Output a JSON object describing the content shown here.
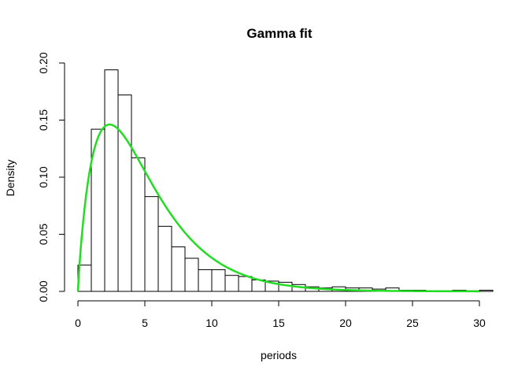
{
  "chart_data": {
    "type": "bar",
    "subtype": "histogram-with-density-curve",
    "title": "Gamma fit",
    "xlabel": "periods",
    "ylabel": "Density",
    "xlim": [
      0,
      31
    ],
    "ylim": [
      0,
      0.2
    ],
    "x_ticks": [
      0,
      5,
      10,
      15,
      20,
      25,
      30
    ],
    "y_ticks": [
      0,
      0.05,
      0.1,
      0.15,
      0.2
    ],
    "x_tick_labels": [
      "0",
      "5",
      "10",
      "15",
      "20",
      "25",
      "30"
    ],
    "y_tick_labels": [
      "0.00",
      "0.05",
      "0.10",
      "0.15",
      "0.20"
    ],
    "bin_width": 1,
    "bins": [
      {
        "x0": 0,
        "x1": 1,
        "density": 0.023
      },
      {
        "x0": 1,
        "x1": 2,
        "density": 0.142
      },
      {
        "x0": 2,
        "x1": 3,
        "density": 0.194
      },
      {
        "x0": 3,
        "x1": 4,
        "density": 0.172
      },
      {
        "x0": 4,
        "x1": 5,
        "density": 0.117
      },
      {
        "x0": 5,
        "x1": 6,
        "density": 0.083
      },
      {
        "x0": 6,
        "x1": 7,
        "density": 0.057
      },
      {
        "x0": 7,
        "x1": 8,
        "density": 0.039
      },
      {
        "x0": 8,
        "x1": 9,
        "density": 0.029
      },
      {
        "x0": 9,
        "x1": 10,
        "density": 0.019
      },
      {
        "x0": 10,
        "x1": 11,
        "density": 0.019
      },
      {
        "x0": 11,
        "x1": 12,
        "density": 0.014
      },
      {
        "x0": 12,
        "x1": 13,
        "density": 0.013
      },
      {
        "x0": 13,
        "x1": 14,
        "density": 0.01
      },
      {
        "x0": 14,
        "x1": 15,
        "density": 0.009
      },
      {
        "x0": 15,
        "x1": 16,
        "density": 0.008
      },
      {
        "x0": 16,
        "x1": 17,
        "density": 0.006
      },
      {
        "x0": 17,
        "x1": 18,
        "density": 0.004
      },
      {
        "x0": 18,
        "x1": 19,
        "density": 0.003
      },
      {
        "x0": 19,
        "x1": 20,
        "density": 0.004
      },
      {
        "x0": 20,
        "x1": 21,
        "density": 0.003
      },
      {
        "x0": 21,
        "x1": 22,
        "density": 0.003
      },
      {
        "x0": 22,
        "x1": 23,
        "density": 0.002
      },
      {
        "x0": 23,
        "x1": 24,
        "density": 0.003
      },
      {
        "x0": 24,
        "x1": 25,
        "density": 0.001
      },
      {
        "x0": 25,
        "x1": 26,
        "density": 0.001
      },
      {
        "x0": 26,
        "x1": 27,
        "density": 0.0005
      },
      {
        "x0": 27,
        "x1": 28,
        "density": 0.0005
      },
      {
        "x0": 28,
        "x1": 29,
        "density": 0.001
      },
      {
        "x0": 29,
        "x1": 30,
        "density": 0.0005
      },
      {
        "x0": 30,
        "x1": 31,
        "density": 0.001
      }
    ],
    "curve": {
      "type": "line",
      "color": "#22dd22",
      "distribution": "gamma",
      "shape": 1.9,
      "rate": 0.38,
      "x_range": [
        0,
        30
      ]
    },
    "grid": false,
    "colors": {
      "bar_fill": "#ffffff",
      "bar_stroke": "#000000",
      "axis": "#000000",
      "background": "#ffffff"
    }
  }
}
